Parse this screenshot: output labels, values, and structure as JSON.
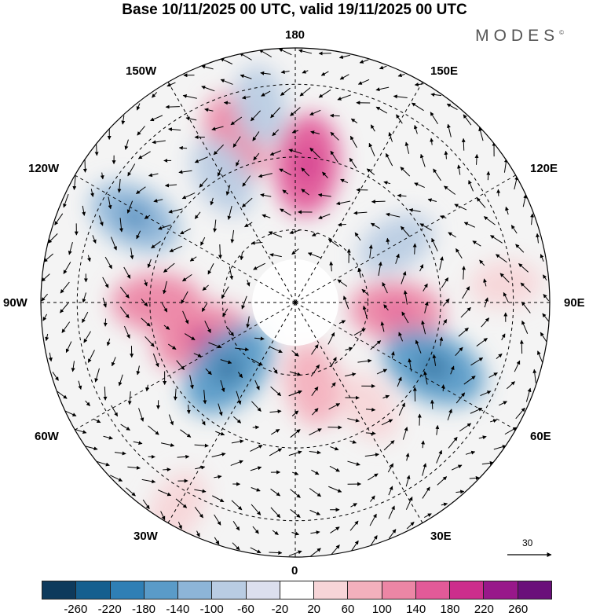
{
  "title": "Base 10/11/2025 00 UTC, valid 19/11/2025 00 UTC",
  "brand": "MODES",
  "brand_mark": "©",
  "longitude_labels": {
    "lon_180": "180",
    "lon_150e": "150E",
    "lon_120e": "120E",
    "lon_90e": "90E",
    "lon_60e": "60E",
    "lon_30e": "30E",
    "lon_0": "0",
    "lon_30w": "30W",
    "lon_60w": "60W",
    "lon_90w": "90W",
    "lon_120w": "120W",
    "lon_150w": "150W"
  },
  "reference_vector": {
    "label": "30"
  },
  "colorbar": {
    "colors": [
      "#0e3a5c",
      "#155f8f",
      "#2f7fb5",
      "#5a9bc8",
      "#8db5d8",
      "#b9cce3",
      "#dcdfee",
      "#ffffff",
      "#f7d5d8",
      "#f3b0bd",
      "#ec86a5",
      "#e25a98",
      "#cc2e8c",
      "#98188a",
      "#6a0f7a"
    ],
    "labels": [
      "-260",
      "-220",
      "-180",
      "-140",
      "-100",
      "-60",
      "-20",
      "20",
      "60",
      "100",
      "140",
      "180",
      "220",
      "260"
    ]
  },
  "anomaly_blobs": [
    {
      "name": "blob-pos-north-pacific",
      "lon": -160,
      "colat": 48,
      "value": 110
    },
    {
      "name": "blob-pos-bering",
      "lon": 175,
      "colat": 38,
      "value": 150
    },
    {
      "name": "blob-neg-alaska",
      "lon": -150,
      "colat": 40,
      "value": -80
    },
    {
      "name": "blob-neg-aleutian",
      "lon": -170,
      "colat": 55,
      "value": -70
    },
    {
      "name": "blob-neg-east-pacific",
      "lon": -118,
      "colat": 50,
      "value": -120
    },
    {
      "name": "blob-pos-north-america",
      "lon": -90,
      "colat": 38,
      "value": 110
    },
    {
      "name": "blob-pos-hudson",
      "lon": -70,
      "colat": 28,
      "value": 130
    },
    {
      "name": "blob-neg-labrador",
      "lon": -45,
      "colat": 26,
      "value": -170
    },
    {
      "name": "blob-neg-siberia",
      "lon": 120,
      "colat": 32,
      "value": -70
    },
    {
      "name": "blob-pos-central-siberia",
      "lon": 85,
      "colat": 28,
      "value": 120
    },
    {
      "name": "blob-neg-central-asia",
      "lon": 65,
      "colat": 42,
      "value": -170
    },
    {
      "name": "blob-pos-scandinavia",
      "lon": 12,
      "colat": 23,
      "value": 90
    },
    {
      "name": "blob-pos-east-europe",
      "lon": 35,
      "colat": 35,
      "value": 50
    },
    {
      "name": "blob-pos-china",
      "lon": 95,
      "colat": 58,
      "value": 40
    },
    {
      "name": "blob-pos-atlantic",
      "lon": -30,
      "colat": 65,
      "value": 60
    }
  ]
}
